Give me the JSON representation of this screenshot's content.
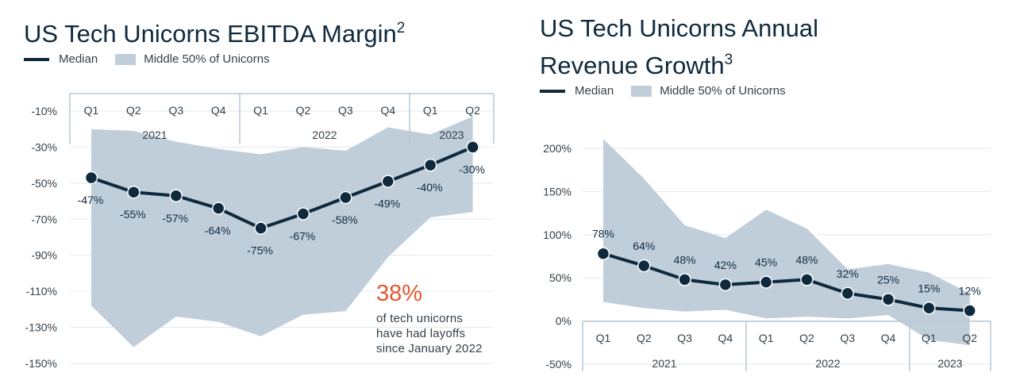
{
  "colors": {
    "median": "#0f2a3d",
    "band": "#c0ceda",
    "grid": "#e3e8ec",
    "axis": "#b8c7d3",
    "accent": "#e4572e"
  },
  "legend": {
    "median_label": "Median",
    "band_label": "Middle 50% of Unicorns"
  },
  "callout": {
    "value": "38%",
    "line1": "of tech unicorns",
    "line2": "have had layoffs",
    "line3": "since January 2022"
  },
  "chart_data": [
    {
      "type": "line",
      "title": "US Tech Unicorns EBITDA Margin",
      "footnote": "2",
      "quarters": [
        "Q1",
        "Q2",
        "Q3",
        "Q4",
        "Q1",
        "Q2",
        "Q3",
        "Q4",
        "Q1",
        "Q2"
      ],
      "years": [
        "2021",
        "2022",
        "2023"
      ],
      "yticks": [
        "-10%",
        "-30%",
        "-50%",
        "-70%",
        "-90%",
        "-110%",
        "-130%",
        "-150%"
      ],
      "ylim": [
        -150,
        -10
      ],
      "median": [
        -47,
        -55,
        -57,
        -64,
        -75,
        -67,
        -58,
        -49,
        -40,
        -30
      ],
      "median_labels": [
        "-47%",
        "-55%",
        "-57%",
        "-64%",
        "-75%",
        "-67%",
        "-58%",
        "-49%",
        "-40%",
        "-30%"
      ],
      "band_upper": [
        -20,
        -21,
        -27,
        -31,
        -34,
        -30,
        -32,
        -19,
        -23,
        -13
      ],
      "band_lower": [
        -118,
        -141,
        -124,
        -127,
        -135,
        -123,
        -121,
        -91,
        -69,
        -66
      ]
    },
    {
      "type": "line",
      "title_line1": "US Tech Unicorns Annual",
      "title_line2": "Revenue Growth",
      "footnote": "3",
      "quarters": [
        "Q1",
        "Q2",
        "Q3",
        "Q4",
        "Q1",
        "Q2",
        "Q3",
        "Q4",
        "Q1",
        "Q2"
      ],
      "years": [
        "2021",
        "2022",
        "2023"
      ],
      "yticks": [
        "200%",
        "150%",
        "100%",
        "50%",
        "0%",
        "-50%"
      ],
      "ylim": [
        -50,
        200
      ],
      "median": [
        78,
        64,
        48,
        42,
        45,
        48,
        32,
        25,
        15,
        12
      ],
      "median_labels": [
        "78%",
        "64%",
        "48%",
        "42%",
        "45%",
        "48%",
        "32%",
        "25%",
        "15%",
        "12%"
      ],
      "band_upper": [
        211,
        165,
        111,
        96,
        129,
        107,
        60,
        66,
        56,
        32
      ],
      "band_lower": [
        22,
        15,
        11,
        13,
        3,
        5,
        3,
        7,
        -22,
        -28
      ]
    }
  ]
}
